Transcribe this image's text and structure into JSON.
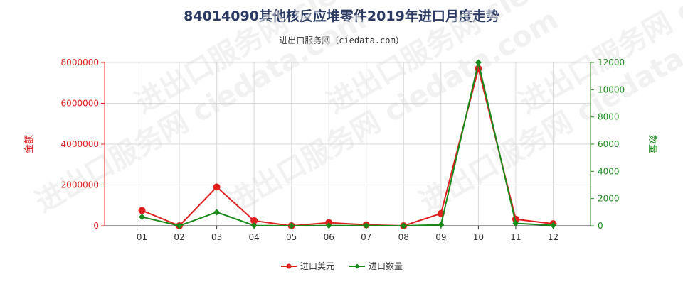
{
  "title": "84014090其他核反应堆零件2019年进口月度走势",
  "subtitle": "进出口服务网（ciedata.com）",
  "colors": {
    "value_series": "#e02020",
    "quantity_series": "#1a8a1a",
    "left_axis": "#e02020",
    "right_axis": "#1a8a1a",
    "grid": "#d9d9d9",
    "watermark": "#e6e6e6"
  },
  "watermark_text": "进出口服务网 ciedata.com",
  "chart_data": {
    "type": "line",
    "categories": [
      "01",
      "02",
      "03",
      "04",
      "05",
      "06",
      "07",
      "08",
      "09",
      "10",
      "11",
      "12"
    ],
    "y_left": {
      "label": "金额",
      "ticks": [
        "0",
        "2000000",
        "4000000",
        "6000000",
        "8000000"
      ],
      "range": [
        0,
        8000000
      ]
    },
    "y_right": {
      "label": "数量",
      "ticks": [
        "0",
        "2000",
        "4000",
        "6000",
        "8000",
        "10000",
        "12000"
      ],
      "range": [
        0,
        12000
      ]
    },
    "series": [
      {
        "name": "进口美元",
        "axis": "left",
        "color": "#e02020",
        "marker": "circle",
        "values": [
          750000,
          0,
          1900000,
          250000,
          0,
          150000,
          50000,
          0,
          600000,
          7700000,
          320000,
          100000
        ]
      },
      {
        "name": "进口数量",
        "axis": "right",
        "color": "#1a8a1a",
        "marker": "diamond",
        "values": [
          650,
          0,
          1000,
          20,
          0,
          20,
          10,
          0,
          80,
          12000,
          180,
          30
        ]
      }
    ],
    "grid": true,
    "legend_position": "bottom-center"
  }
}
